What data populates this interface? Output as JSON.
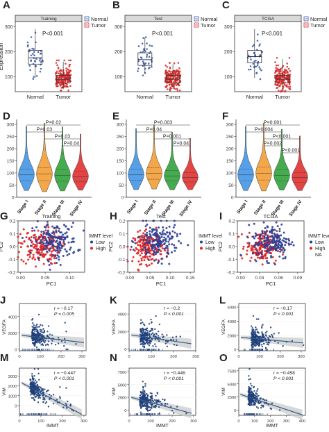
{
  "colors": {
    "normal": "#3355aa",
    "tumor": "#d62728",
    "low": "#2c3e94",
    "high": "#e02020",
    "scatter": "#1f3f7a",
    "fit": "#2f5d8a",
    "band": "#c8c8c8",
    "violin1": "#4c9be8",
    "violin2": "#f4a340",
    "violin3": "#3aa845",
    "violin4": "#e23b3b",
    "strip": "#d9d9d9"
  },
  "chart_data": [
    {
      "panel": "A",
      "type": "box",
      "title": "Training",
      "categories": [
        "Normal",
        "Tumor"
      ],
      "ylabel": "Expression",
      "ylim": [
        40,
        320
      ],
      "yticks": [
        100,
        200,
        300
      ],
      "legend": [
        "Normal",
        "Tumor"
      ],
      "pvalue": "P<0.001",
      "boxes": [
        {
          "q1": 150,
          "median": 175,
          "q3": 205,
          "whisker_low": 95,
          "whisker_high": 290
        },
        {
          "q1": 75,
          "median": 90,
          "q3": 105,
          "whisker_low": 50,
          "whisker_high": 160
        }
      ]
    },
    {
      "panel": "B",
      "type": "box",
      "title": "Test",
      "categories": [
        "Normal",
        "Tumor"
      ],
      "ylabel": "",
      "ylim": [
        40,
        320
      ],
      "yticks": [
        100,
        200,
        300
      ],
      "legend": [
        "Normal",
        "Tumor"
      ],
      "pvalue": "P<0.001",
      "boxes": [
        {
          "q1": 145,
          "median": 168,
          "q3": 195,
          "whisker_low": 110,
          "whisker_high": 255
        },
        {
          "q1": 75,
          "median": 90,
          "q3": 105,
          "whisker_low": 50,
          "whisker_high": 150
        }
      ]
    },
    {
      "panel": "C",
      "type": "box",
      "title": "TCGA",
      "categories": [
        "Normal",
        "Tumor"
      ],
      "ylabel": "",
      "ylim": [
        40,
        320
      ],
      "yticks": [
        100,
        200,
        300
      ],
      "legend": [
        "Normal",
        "Tumor"
      ],
      "pvalue": "P<0.001",
      "boxes": [
        {
          "q1": 155,
          "median": 180,
          "q3": 205,
          "whisker_low": 95,
          "whisker_high": 290
        },
        {
          "q1": 75,
          "median": 90,
          "q3": 105,
          "whisker_low": 45,
          "whisker_high": 170
        }
      ]
    },
    {
      "panel": "D",
      "type": "violin",
      "categories": [
        "Stage I",
        "Stage II",
        "Stage III",
        "Stage IV"
      ],
      "ylim": [
        0,
        320
      ],
      "yticks": [
        0,
        50,
        100,
        150,
        200,
        250,
        300
      ],
      "medians": [
        92,
        95,
        90,
        85
      ],
      "spreads": [
        40,
        45,
        40,
        35
      ],
      "comparisons": [
        {
          "from": 0,
          "to": 3,
          "label": "P=0.02"
        },
        {
          "from": 0,
          "to": 2,
          "label": "P=0.03"
        },
        {
          "from": 1,
          "to": 3,
          "label": "P=0.03"
        },
        {
          "from": 2,
          "to": 3,
          "label": "P=0.04"
        }
      ]
    },
    {
      "panel": "E",
      "type": "violin",
      "categories": [
        "Stage I",
        "Stage II",
        "Stage III",
        "Stage IV"
      ],
      "ylim": [
        0,
        320
      ],
      "yticks": [
        0,
        50,
        100,
        150,
        200,
        250,
        300
      ],
      "medians": [
        92,
        98,
        88,
        82
      ],
      "spreads": [
        38,
        40,
        36,
        32
      ],
      "comparisons": [
        {
          "from": 0,
          "to": 3,
          "label": "P=0.003"
        },
        {
          "from": 0,
          "to": 2,
          "label": "P=0.04"
        },
        {
          "from": 1,
          "to": 3,
          "label": "P=0.001"
        },
        {
          "from": 2,
          "to": 3,
          "label": "P=0.04"
        }
      ]
    },
    {
      "panel": "F",
      "type": "violin",
      "categories": [
        "Stage I",
        "Stage II",
        "Stage III",
        "Stage IV"
      ],
      "ylim": [
        0,
        320
      ],
      "yticks": [
        0,
        50,
        100,
        150,
        200,
        250,
        300
      ],
      "medians": [
        92,
        98,
        90,
        82
      ],
      "spreads": [
        40,
        45,
        38,
        34
      ],
      "comparisons": [
        {
          "from": 0,
          "to": 3,
          "label": "P=0.001"
        },
        {
          "from": 0,
          "to": 2,
          "label": "P=0.004"
        },
        {
          "from": 1,
          "to": 3,
          "label": "P<0.001"
        },
        {
          "from": 1,
          "to": 2,
          "label": "P=0.002"
        },
        {
          "from": 2,
          "to": 3,
          "label": "P<0.001"
        }
      ]
    },
    {
      "panel": "G",
      "type": "scatter",
      "title": "Training",
      "xlabel": "PC1",
      "ylabel": "PC2",
      "xlim": [
        -0.005,
        0.13
      ],
      "ylim": [
        -0.2,
        0.2
      ],
      "xticks": [
        0.0,
        0.05,
        0.1
      ],
      "yticks": [
        -0.2,
        -0.1,
        0.0,
        0.1,
        0.2
      ],
      "xtick_labels": [
        "0.00",
        "0.05",
        "0.10"
      ],
      "legend_title": "IMMT level",
      "legend": [
        "Low",
        "High"
      ],
      "clusters": {
        "low": {
          "cx": 0.07,
          "cy": 0.04,
          "sx": 0.022,
          "sy": 0.07
        },
        "high": {
          "cx": 0.04,
          "cy": 0.0,
          "sx": 0.02,
          "sy": 0.07
        }
      }
    },
    {
      "panel": "H",
      "type": "scatter",
      "title": "Test",
      "xlabel": "PC1",
      "ylabel": "",
      "xlim": [
        -0.005,
        0.16
      ],
      "ylim": [
        -0.2,
        0.2
      ],
      "xticks": [
        0.0,
        0.05,
        0.1,
        0.15
      ],
      "yticks": [
        -0.2,
        -0.1,
        0.0,
        0.1,
        0.2
      ],
      "xtick_labels": [
        "0.00",
        "0.05",
        "0.10",
        "0.15"
      ],
      "legend_title": "IMMT level",
      "legend": [
        "Low",
        "High"
      ],
      "clusters": {
        "low": {
          "cx": 0.07,
          "cy": 0.04,
          "sx": 0.025,
          "sy": 0.07
        },
        "high": {
          "cx": 0.045,
          "cy": -0.01,
          "sx": 0.018,
          "sy": 0.06
        }
      }
    },
    {
      "panel": "I",
      "type": "scatter",
      "title": "TCGA",
      "xlabel": "PC1",
      "ylabel": "",
      "xlim": [
        -0.005,
        0.1
      ],
      "ylim": [
        -0.2,
        0.2
      ],
      "xticks": [
        0.0,
        0.03,
        0.06,
        0.09
      ],
      "yticks": [
        -0.2,
        -0.1,
        0.0,
        0.1,
        0.2
      ],
      "xtick_labels": [
        "0.00",
        "0.03",
        "0.06",
        "0.09"
      ],
      "legend_title": "IMMT level",
      "legend": [
        "Low",
        "High",
        "NA"
      ],
      "clusters": {
        "low": {
          "cx": 0.05,
          "cy": 0.04,
          "sx": 0.015,
          "sy": 0.07
        },
        "high": {
          "cx": 0.033,
          "cy": 0.0,
          "sx": 0.012,
          "sy": 0.06
        }
      }
    },
    {
      "panel": "J",
      "type": "scatter_regression",
      "xlabel": "",
      "ylabel": "VEGFA",
      "xlim": [
        0,
        320
      ],
      "ylim": [
        -200,
        5600
      ],
      "xticks": [
        0,
        100,
        200,
        300
      ],
      "yticks": [
        0,
        2000,
        4000
      ],
      "r_label": "r = −0.17",
      "p_label": "P = 0.005",
      "fit": {
        "x0": 10,
        "y0": 1700,
        "x1": 310,
        "y1": 800
      },
      "center": [
        90,
        1300
      ]
    },
    {
      "panel": "K",
      "type": "scatter_regression",
      "xlabel": "",
      "ylabel": "VEGFA",
      "xlim": [
        0,
        300
      ],
      "ylim": [
        -200,
        5200
      ],
      "xticks": [
        0,
        100,
        200,
        300
      ],
      "yticks": [
        0,
        2000,
        4000
      ],
      "r_label": "r = −0.2",
      "p_label": "P < 0.001",
      "fit": {
        "x0": 10,
        "y0": 1600,
        "x1": 280,
        "y1": 600
      },
      "center": [
        80,
        1200
      ]
    },
    {
      "panel": "L",
      "type": "scatter_regression",
      "xlabel": "",
      "ylabel": "VEGFA",
      "xlim": [
        0,
        320
      ],
      "ylim": [
        -200,
        6500
      ],
      "xticks": [
        0,
        100,
        200,
        300
      ],
      "yticks": [
        0,
        2000,
        4000,
        6000
      ],
      "r_label": "r = −0.17",
      "p_label": "P < 0.001",
      "fit": {
        "x0": 10,
        "y0": 1700,
        "x1": 310,
        "y1": 900
      },
      "center": [
        90,
        1300
      ]
    },
    {
      "panel": "M",
      "type": "scatter_regression",
      "xlabel": "IMMT",
      "ylabel": "VIM",
      "xlim": [
        0,
        310
      ],
      "ylim": [
        -1000,
        3800
      ],
      "xticks": [
        0,
        100,
        200,
        300
      ],
      "yticks": [
        0,
        1000,
        2000,
        3000
      ],
      "r_label": "r = −0.447",
      "p_label": "P < 0.001",
      "fit": {
        "x0": 10,
        "y0": 2300,
        "x1": 290,
        "y1": -900
      },
      "center": [
        80,
        1300
      ]
    },
    {
      "panel": "N",
      "type": "scatter_regression",
      "xlabel": "IMMT",
      "ylabel": "VIM",
      "xlim": [
        0,
        310
      ],
      "ylim": [
        -1000,
        8200
      ],
      "xticks": [
        0,
        100,
        200,
        300
      ],
      "yticks": [
        -2500,
        0,
        2500,
        5000,
        7500
      ],
      "r_label": "r = −0.446",
      "p_label": "P < 0.001",
      "fit": {
        "x0": 10,
        "y0": 2500,
        "x1": 290,
        "y1": -600
      },
      "center": [
        80,
        1800
      ]
    },
    {
      "panel": "O",
      "type": "scatter_regression",
      "xlabel": "IMMT",
      "ylabel": "VIM",
      "xlim": [
        0,
        420
      ],
      "ylim": [
        -1000,
        8000
      ],
      "xticks": [
        0,
        100,
        200,
        300,
        400
      ],
      "yticks": [
        0,
        2500,
        5000,
        7500
      ],
      "r_label": "r = −0.458",
      "p_label": "P < 0.001",
      "fit": {
        "x0": 10,
        "y0": 3000,
        "x1": 400,
        "y1": -900
      },
      "center": [
        90,
        2000
      ]
    }
  ]
}
